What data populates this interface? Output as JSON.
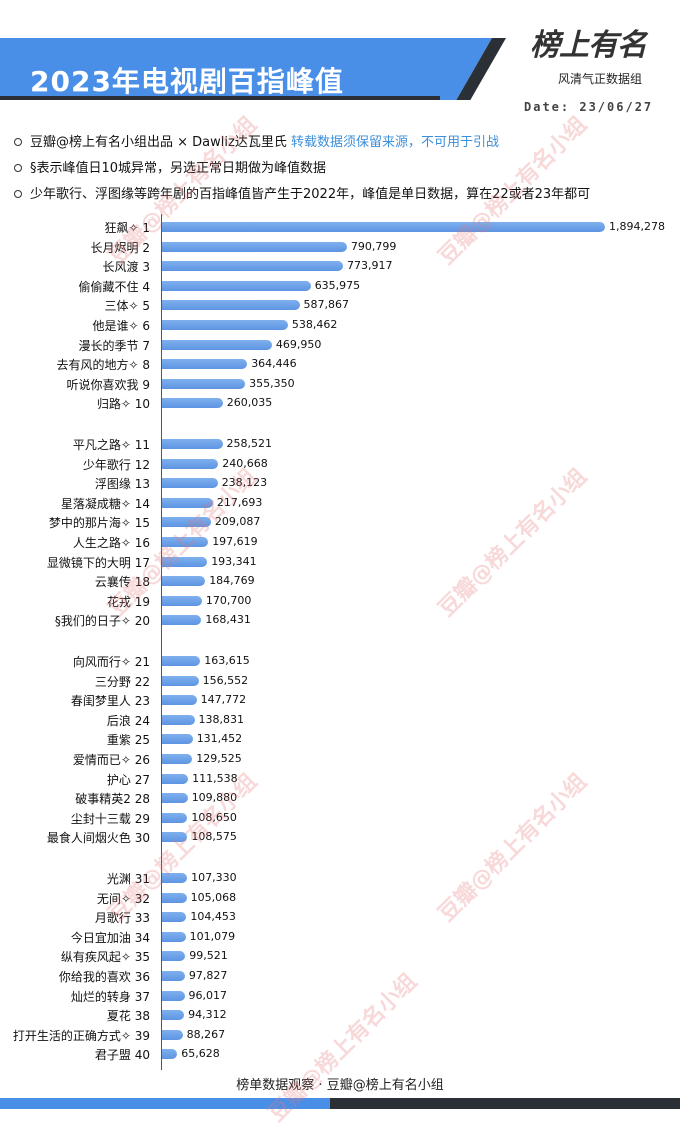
{
  "header": {
    "title": "2023年电视剧百指峰值",
    "logo_main": "榜上有名",
    "logo_sub": "风清气正数据组",
    "date": "Date: 23/06/27",
    "colors": {
      "banner_blue": "#4a8fe7",
      "banner_dark": "#2b2f36",
      "accent_text": "#3c8fd9",
      "bar": "#6a9fe6"
    }
  },
  "notes": {
    "line1_prefix": "豆瓣@榜上有名小组出品 × Dawliz达瓦里氏 ",
    "line1_highlight": "转载数据须保留来源，不可用于引战",
    "line2": "§表示峰值日10城异常，另选正常日期做为峰值数据",
    "line3": "少年歌行、浮图缘等跨年剧的百指峰值皆产生于2022年，峰值是单日数据，算在22或者23年都可"
  },
  "watermark": "豆瓣@榜上有名小组",
  "footer": "榜单数据观察 · 豆瓣@榜上有名小组",
  "chart_data": {
    "type": "bar",
    "orientation": "horizontal",
    "categories": [
      "狂飙✧ 1",
      "长月烬明 2",
      "长风渡 3",
      "偷偷藏不住 4",
      "三体✧ 5",
      "他是谁✧ 6",
      "漫长的季节 7",
      "去有风的地方✧ 8",
      "听说你喜欢我 9",
      "归路✧ 10",
      "平凡之路✧ 11",
      "少年歌行 12",
      "浮图缘 13",
      "星落凝成糖✧ 14",
      "梦中的那片海✧ 15",
      "人生之路✧ 16",
      "显微镜下的大明 17",
      "云襄传 18",
      "花戎 19",
      "§我们的日子✧ 20",
      "向风而行✧ 21",
      "三分野 22",
      "春闺梦里人 23",
      "后浪 24",
      "重紫 25",
      "爱情而已✧ 26",
      "护心 27",
      "破事精英2 28",
      "尘封十三载 29",
      "最食人间烟火色 30",
      "光渊 31",
      "无间✧ 32",
      "月歌行 33",
      "今日宜加油 34",
      "纵有疾风起✧ 35",
      "你给我的喜欢 36",
      "灿烂的转身 37",
      "夏花 38",
      "打开生活的正确方式✧ 39",
      "君子盟 40"
    ],
    "values": [
      1894278,
      790799,
      773917,
      635975,
      587867,
      538462,
      469950,
      364446,
      355350,
      260035,
      258521,
      240668,
      238123,
      217693,
      209087,
      197619,
      193341,
      184769,
      170700,
      168431,
      163615,
      156552,
      147772,
      138831,
      131452,
      129525,
      111538,
      109880,
      108650,
      108575,
      107330,
      105068,
      104453,
      101079,
      99521,
      97827,
      96017,
      94312,
      88267,
      65628
    ],
    "value_labels": [
      "1,894,278",
      "790,799",
      "773,917",
      "635,975",
      "587,867",
      "538,462",
      "469,950",
      "364,446",
      "355,350",
      "260,035",
      "258,521",
      "240,668",
      "238,123",
      "217,693",
      "209,087",
      "197,619",
      "193,341",
      "184,769",
      "170,700",
      "168,431",
      "163,615",
      "156,552",
      "147,772",
      "138,831",
      "131,452",
      "129,525",
      "111,538",
      "109,880",
      "108,650",
      "108,575",
      "107,330",
      "105,068",
      "104,453",
      "101,079",
      "99,521",
      "97,827",
      "96,017",
      "94,312",
      "88,267",
      "65,628"
    ],
    "title": "2023年电视剧百指峰值",
    "xlabel": "",
    "ylabel": "",
    "xlim": [
      0,
      1894278
    ],
    "grid": false,
    "legend": "none"
  }
}
